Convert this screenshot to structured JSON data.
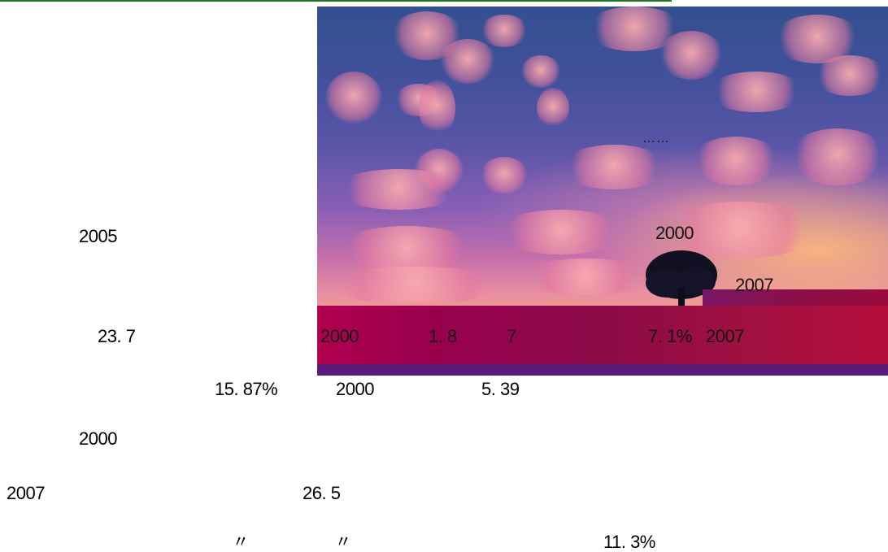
{
  "ellipsis": "……",
  "left_column": {
    "year_2005": "2005",
    "value_23_7": "23. 7",
    "value_15_87": "15. 87%",
    "year_2000": "2000"
  },
  "image_overlay": {
    "year_2000_top": "2000",
    "year_2007_top": "2007",
    "row": {
      "year_2000": "2000",
      "value_1_8": "1. 8",
      "value_7": "7",
      "value_7_1": "7. 1%",
      "year_2007": "2007"
    }
  },
  "below_image": {
    "year_2000": "2000",
    "value_5_39": "5. 39"
  },
  "bottom": {
    "year_2007": "2007",
    "value_26_5": "26. 5",
    "quote_open": "〃",
    "quote_close": "〃",
    "value_11_3": "11. 3%"
  }
}
